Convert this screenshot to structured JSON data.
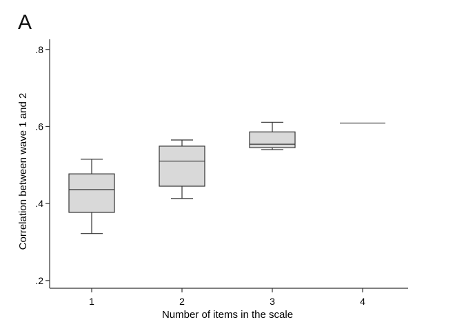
{
  "panel_label": "A",
  "chart_data": {
    "type": "box",
    "title": "",
    "xlabel": "Number of items in the scale",
    "ylabel": "Correlation between wave 1 and 2",
    "categories": [
      "1",
      "2",
      "3",
      "4"
    ],
    "ylim": [
      0.18,
      0.83
    ],
    "yticks": [
      0.2,
      0.4,
      0.6,
      0.8
    ],
    "ytick_labels": [
      ".2",
      ".4",
      ".6",
      ".8"
    ],
    "boxes": [
      {
        "category": "1",
        "whisker_low": 0.322,
        "q1": 0.377,
        "median": 0.436,
        "q3": 0.477,
        "whisker_high": 0.515
      },
      {
        "category": "2",
        "whisker_low": 0.413,
        "q1": 0.445,
        "median": 0.51,
        "q3": 0.549,
        "whisker_high": 0.565
      },
      {
        "category": "3",
        "whisker_low": 0.54,
        "q1": 0.545,
        "median": 0.554,
        "q3": 0.586,
        "whisker_high": 0.611
      },
      {
        "category": "4",
        "whisker_low": 0.609,
        "q1": 0.609,
        "median": 0.609,
        "q3": 0.609,
        "whisker_high": 0.609
      }
    ],
    "box_fill": "#d9d9d9",
    "line_color": "#333333",
    "grid": false,
    "legend": "none"
  }
}
